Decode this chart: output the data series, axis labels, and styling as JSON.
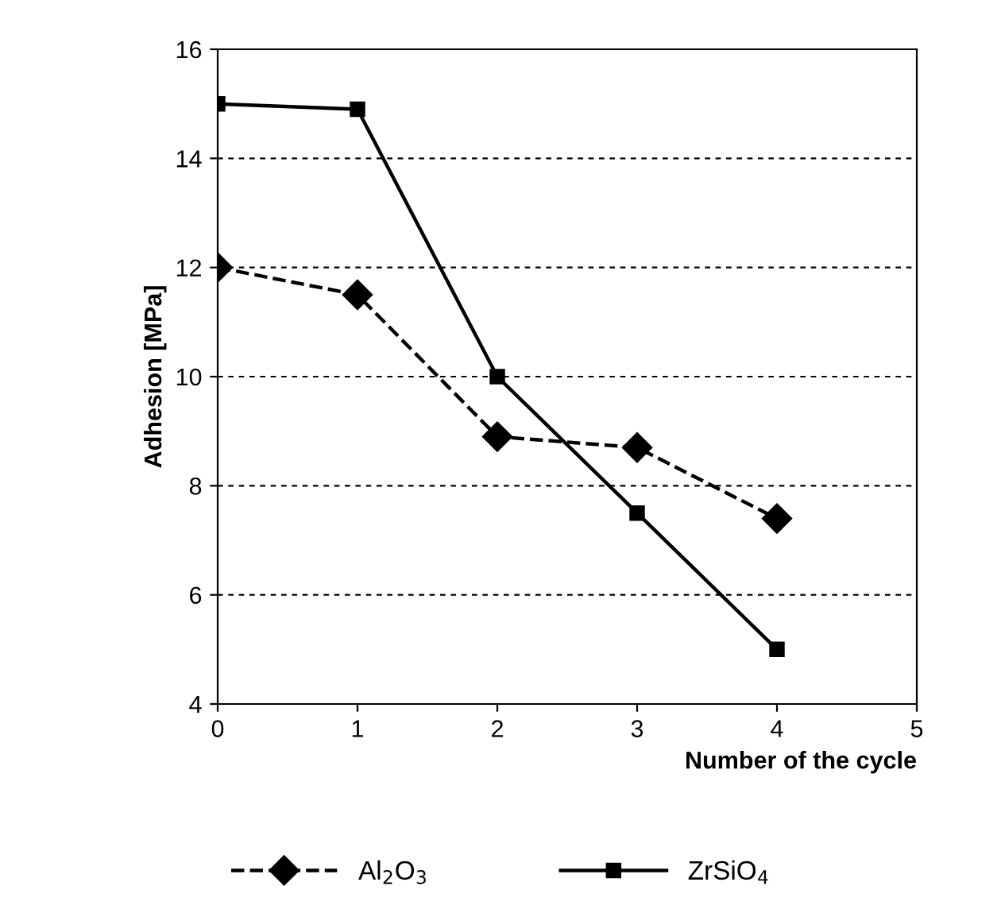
{
  "chart_data": {
    "type": "line",
    "xlabel": "Number of the cycle",
    "ylabel": "Adhesion [MPa]",
    "x": [
      0,
      1,
      2,
      3,
      4
    ],
    "series": [
      {
        "name": "Al$_{2}$O$_{3}$",
        "color": "#000000",
        "values": [
          12.0,
          11.5,
          8.9,
          8.7,
          7.4
        ],
        "marker": "diamond",
        "line_style": "dashed"
      },
      {
        "name": "ZrSiO$_{4}$",
        "color": "#000000",
        "values": [
          15.0,
          14.9,
          10.0,
          7.5,
          5.0
        ],
        "marker": "square",
        "line_style": "solid"
      }
    ],
    "xlim": [
      0,
      5
    ],
    "xticks": [
      0,
      1,
      2,
      3,
      4,
      5
    ],
    "ylim": [
      4,
      16
    ],
    "yticks": [
      4,
      6,
      8,
      10,
      12,
      14,
      16
    ],
    "grid": "y",
    "legend": "bottom"
  }
}
